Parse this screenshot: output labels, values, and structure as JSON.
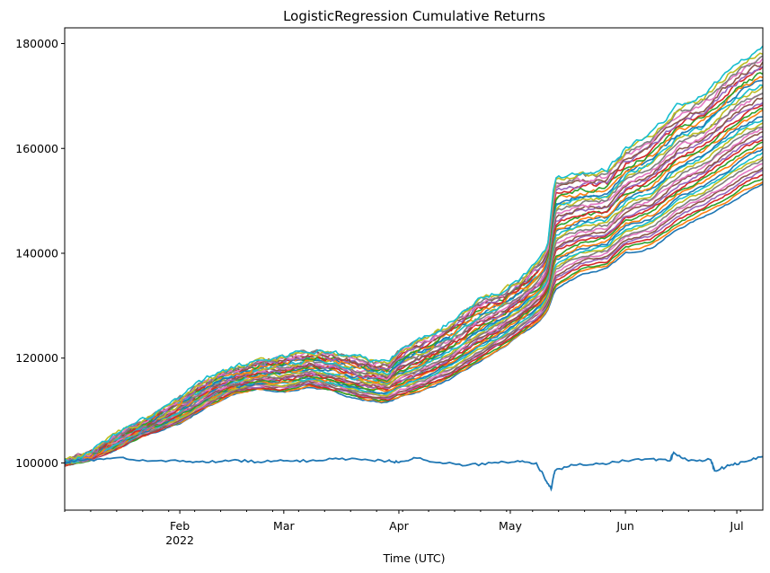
{
  "chart_data": {
    "type": "line",
    "title": "LogisticRegression Cumulative Returns",
    "xlabel": "Time (UTC)",
    "ylabel": "",
    "xlim": [
      "2022-01-01",
      "2022-07-08"
    ],
    "ylim": [
      91000,
      183000
    ],
    "yticks": [
      100000,
      120000,
      140000,
      160000,
      180000
    ],
    "ytick_labels": [
      "100000",
      "120000",
      "140000",
      "160000",
      "180000"
    ],
    "xticks": [
      {
        "date": "2022-02-01",
        "label": "Feb",
        "sublabel": "2022"
      },
      {
        "date": "2022-03-01",
        "label": "Mar",
        "sublabel": ""
      },
      {
        "date": "2022-04-01",
        "label": "Apr",
        "sublabel": ""
      },
      {
        "date": "2022-05-01",
        "label": "May",
        "sublabel": ""
      },
      {
        "date": "2022-06-01",
        "label": "Jun",
        "sublabel": ""
      },
      {
        "date": "2022-07-01",
        "label": "Jul",
        "sublabel": ""
      }
    ],
    "grid": false,
    "legend": "none",
    "palette": [
      "#1f77b4",
      "#ff7f0e",
      "#2ca02c",
      "#d62728",
      "#9467bd",
      "#8c564b",
      "#e377c2",
      "#7f7f7f",
      "#bcbd22",
      "#17becf"
    ],
    "ensemble": {
      "dates": [
        "2022-01-01",
        "2022-01-08",
        "2022-01-15",
        "2022-01-22",
        "2022-02-01",
        "2022-02-08",
        "2022-02-15",
        "2022-02-22",
        "2022-03-01",
        "2022-03-08",
        "2022-03-15",
        "2022-03-22",
        "2022-03-29",
        "2022-04-01",
        "2022-04-08",
        "2022-04-15",
        "2022-04-22",
        "2022-04-29",
        "2022-05-05",
        "2022-05-09",
        "2022-05-11",
        "2022-05-13",
        "2022-05-20",
        "2022-05-27",
        "2022-06-01",
        "2022-06-08",
        "2022-06-15",
        "2022-06-22",
        "2022-06-29",
        "2022-07-03",
        "2022-07-08"
      ],
      "upper": [
        100500,
        102000,
        105500,
        108000,
        112500,
        116000,
        118000,
        119500,
        120500,
        121500,
        121000,
        120000,
        119000,
        121500,
        124000,
        127000,
        131000,
        133000,
        136000,
        139000,
        141000,
        154500,
        155500,
        156000,
        160000,
        163000,
        168000,
        170000,
        175000,
        177000,
        179000
      ],
      "lower": [
        99500,
        100500,
        102500,
        105000,
        107500,
        110500,
        113000,
        114000,
        113500,
        114500,
        113500,
        112000,
        111500,
        112500,
        114000,
        116000,
        119000,
        122000,
        125000,
        127000,
        129000,
        133000,
        136000,
        137000,
        140000,
        141000,
        144500,
        147000,
        149500,
        151500,
        153000
      ],
      "line_count": 40
    },
    "series": [
      {
        "values": [
          {
            "x": "2022-01-01",
            "y": 100200
          },
          {
            "x": "2022-01-08",
            "y": 100600
          },
          {
            "x": "2022-01-15",
            "y": 101000
          },
          {
            "x": "2022-01-22",
            "y": 100600
          },
          {
            "x": "2022-02-01",
            "y": 100300
          },
          {
            "x": "2022-02-08",
            "y": 100100
          },
          {
            "x": "2022-02-15",
            "y": 100500
          },
          {
            "x": "2022-02-22",
            "y": 100200
          },
          {
            "x": "2022-03-01",
            "y": 100400
          },
          {
            "x": "2022-03-08",
            "y": 100400
          },
          {
            "x": "2022-03-15",
            "y": 100900
          },
          {
            "x": "2022-03-22",
            "y": 100600
          },
          {
            "x": "2022-03-29",
            "y": 100400
          },
          {
            "x": "2022-04-01",
            "y": 100100
          },
          {
            "x": "2022-04-05",
            "y": 101000
          },
          {
            "x": "2022-04-12",
            "y": 100100
          },
          {
            "x": "2022-04-19",
            "y": 99500
          },
          {
            "x": "2022-04-26",
            "y": 100000
          },
          {
            "x": "2022-05-03",
            "y": 100400
          },
          {
            "x": "2022-05-08",
            "y": 100000
          },
          {
            "x": "2022-05-10",
            "y": 97500
          },
          {
            "x": "2022-05-12",
            "y": 95000
          },
          {
            "x": "2022-05-13",
            "y": 98500
          },
          {
            "x": "2022-05-18",
            "y": 99600
          },
          {
            "x": "2022-05-25",
            "y": 99800
          },
          {
            "x": "2022-06-01",
            "y": 100400
          },
          {
            "x": "2022-06-08",
            "y": 100800
          },
          {
            "x": "2022-06-13",
            "y": 100400
          },
          {
            "x": "2022-06-14",
            "y": 102000
          },
          {
            "x": "2022-06-18",
            "y": 100400
          },
          {
            "x": "2022-06-24",
            "y": 100600
          },
          {
            "x": "2022-06-25",
            "y": 98500
          },
          {
            "x": "2022-06-29",
            "y": 99500
          },
          {
            "x": "2022-07-03",
            "y": 100200
          },
          {
            "x": "2022-07-08",
            "y": 101200
          }
        ]
      }
    ]
  }
}
